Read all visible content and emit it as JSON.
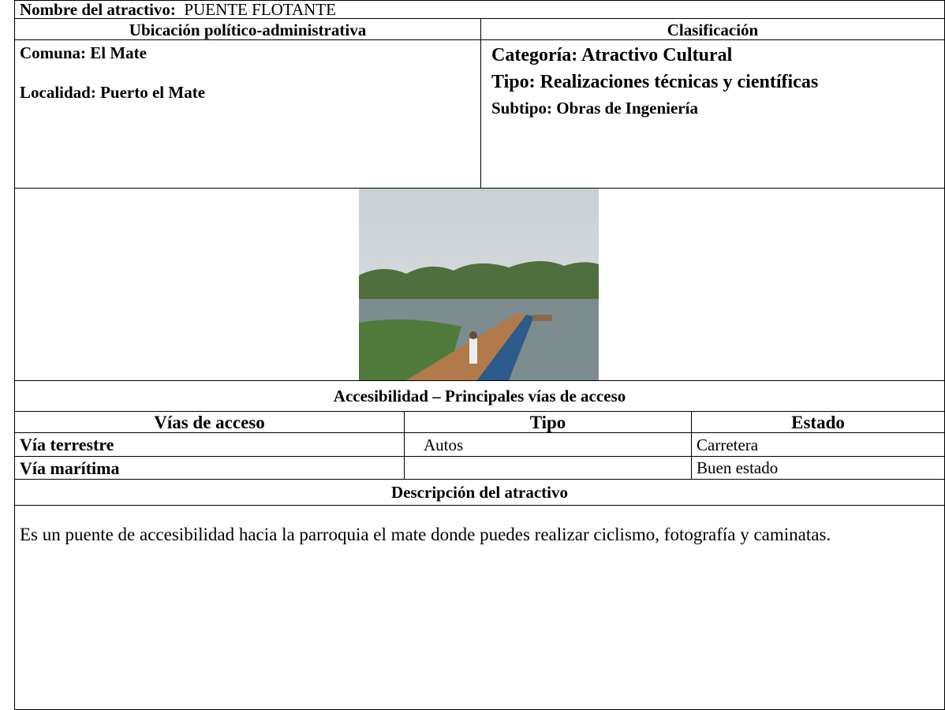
{
  "header": {
    "label": "Nombre del atractivo:",
    "value": "PUENTE FLOTANTE"
  },
  "location": {
    "heading": "Ubicación político-administrativa",
    "lines": [
      "Comuna: El Mate",
      "Localidad: Puerto el Mate"
    ]
  },
  "classification": {
    "heading": "Clasificación",
    "lines": [
      "Categoría: Atractivo Cultural",
      "Tipo: Realizaciones técnicas y científicas",
      "Subtipo: Obras de Ingeniería"
    ]
  },
  "access": {
    "title": "Accesibilidad – Principales vías de acceso",
    "columns": [
      "Vías de acceso",
      "Tipo",
      "Estado"
    ],
    "rows": [
      [
        "Vía terrestre",
        "Autos",
        "Carretera"
      ],
      [
        "Vía marítima",
        null,
        "Buen estado"
      ]
    ]
  },
  "description": {
    "title": "Descripción del atractivo",
    "text": "Es un puente de accesibilidad hacia la parroquia el mate  donde puedes realizar ciclismo, fotografía y caminatas."
  }
}
